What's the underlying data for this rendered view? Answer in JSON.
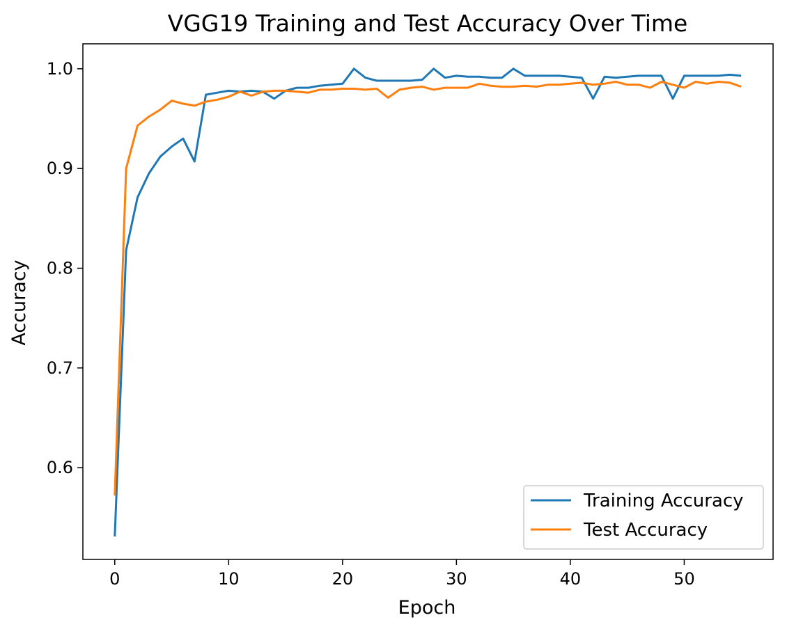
{
  "chart_data": {
    "type": "line",
    "title": "VGG19 Training and Test Accuracy Over Time",
    "xlabel": "Epoch",
    "ylabel": "Accuracy",
    "xlim": [
      -2.8,
      57.8
    ],
    "ylim": [
      0.508,
      1.025
    ],
    "x_ticks": [
      "0",
      "10",
      "20",
      "30",
      "40",
      "50"
    ],
    "y_ticks": [
      "0.6",
      "0.7",
      "0.8",
      "0.9",
      "1.0"
    ],
    "grid": false,
    "legend_position": "lower right",
    "series": [
      {
        "name": "Training Accuracy",
        "color": "#1f77b4",
        "x": [
          0,
          1,
          2,
          3,
          4,
          5,
          6,
          7,
          8,
          9,
          10,
          11,
          12,
          13,
          14,
          15,
          16,
          17,
          18,
          19,
          20,
          21,
          22,
          23,
          24,
          25,
          26,
          27,
          28,
          29,
          30,
          31,
          32,
          33,
          34,
          35,
          36,
          37,
          38,
          39,
          40,
          41,
          42,
          43,
          44,
          45,
          46,
          47,
          48,
          49,
          50,
          51,
          52,
          53,
          54,
          55
        ],
        "values": [
          0.531,
          0.818,
          0.871,
          0.895,
          0.912,
          0.922,
          0.93,
          0.907,
          0.974,
          0.976,
          0.978,
          0.977,
          0.978,
          0.977,
          0.97,
          0.978,
          0.981,
          0.981,
          0.983,
          0.984,
          0.985,
          1.0,
          0.991,
          0.988,
          0.988,
          0.988,
          0.988,
          0.989,
          1.0,
          0.991,
          0.993,
          0.992,
          0.992,
          0.991,
          0.991,
          1.0,
          0.993,
          0.993,
          0.993,
          0.993,
          0.992,
          0.991,
          0.97,
          0.992,
          0.991,
          0.992,
          0.993,
          0.993,
          0.993,
          0.97,
          0.993,
          0.993,
          0.993,
          0.993,
          0.994,
          0.993
        ]
      },
      {
        "name": "Test Accuracy",
        "color": "#ff7f0e",
        "x": [
          0,
          1,
          2,
          3,
          4,
          5,
          6,
          7,
          8,
          9,
          10,
          11,
          12,
          13,
          14,
          15,
          16,
          17,
          18,
          19,
          20,
          21,
          22,
          23,
          24,
          25,
          26,
          27,
          28,
          29,
          30,
          31,
          32,
          33,
          34,
          35,
          36,
          37,
          38,
          39,
          40,
          41,
          42,
          43,
          44,
          45,
          46,
          47,
          48,
          49,
          50,
          51,
          52,
          53,
          54,
          55
        ],
        "values": [
          0.572,
          0.9,
          0.943,
          0.952,
          0.959,
          0.968,
          0.965,
          0.963,
          0.967,
          0.969,
          0.972,
          0.977,
          0.973,
          0.977,
          0.978,
          0.978,
          0.977,
          0.976,
          0.979,
          0.979,
          0.98,
          0.98,
          0.979,
          0.98,
          0.971,
          0.979,
          0.981,
          0.982,
          0.979,
          0.981,
          0.981,
          0.981,
          0.985,
          0.983,
          0.982,
          0.982,
          0.983,
          0.982,
          0.984,
          0.984,
          0.985,
          0.986,
          0.984,
          0.985,
          0.987,
          0.984,
          0.984,
          0.981,
          0.987,
          0.984,
          0.981,
          0.987,
          0.985,
          0.987,
          0.986,
          0.982
        ]
      }
    ]
  }
}
